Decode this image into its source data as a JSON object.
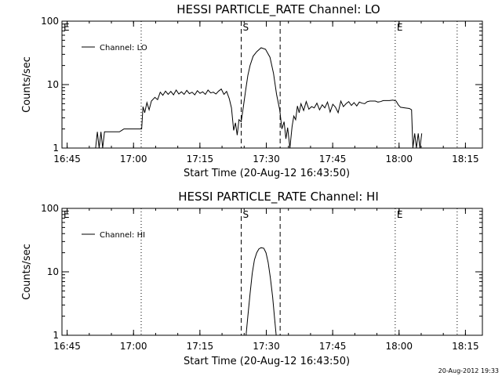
{
  "footer": {
    "timestamp": "20-Aug-2012 19:33"
  },
  "chart_data": [
    {
      "type": "line",
      "title": "HESSI PARTICLE_RATE Channel: LO",
      "xlabel": "Start Time (20-Aug-12 16:43:50)",
      "ylabel": "Counts/sec",
      "x_unit": "minutes after 16:43:50",
      "xlim": [
        0,
        95
      ],
      "ylim": [
        1,
        100
      ],
      "yscale": "log",
      "x_ticks": [
        "16:45",
        "17:00",
        "17:15",
        "17:30",
        "17:45",
        "18:00",
        "18:15"
      ],
      "y_ticks": [
        "1",
        "10",
        "100"
      ],
      "legend": {
        "entries": [
          "Channel: LO"
        ],
        "position": "top-left"
      },
      "markers": [
        {
          "label": "E",
          "x": 0,
          "style": "dotted"
        },
        {
          "label": "",
          "x": 17.9,
          "style": "dotted"
        },
        {
          "label": "S",
          "x": 40.5,
          "style": "dashed"
        },
        {
          "label": "",
          "x": 49.3,
          "style": "dashed"
        },
        {
          "label": "E",
          "x": 75.3,
          "style": "dotted"
        },
        {
          "label": "",
          "x": 89.3,
          "style": "dotted"
        }
      ],
      "series": [
        {
          "values": [
            [
              7.6,
              0.9
            ],
            [
              8.0,
              1.8
            ],
            [
              8.4,
              1.0
            ],
            [
              8.8,
              1.8
            ],
            [
              9.2,
              0.9
            ],
            [
              9.6,
              1.8
            ],
            [
              10.0,
              1.8
            ],
            [
              13.0,
              1.8
            ],
            [
              13.5,
              1.9
            ],
            [
              14.0,
              2.0
            ],
            [
              18.0,
              2.0
            ],
            [
              18.3,
              4.5
            ],
            [
              18.7,
              3.6
            ],
            [
              19.2,
              5.2
            ],
            [
              19.7,
              4.0
            ],
            [
              20.2,
              5.5
            ],
            [
              21.0,
              6.3
            ],
            [
              21.6,
              5.8
            ],
            [
              22.2,
              7.6
            ],
            [
              22.8,
              6.8
            ],
            [
              23.4,
              7.9
            ],
            [
              24.0,
              7.0
            ],
            [
              24.6,
              7.8
            ],
            [
              25.2,
              6.9
            ],
            [
              25.8,
              8.2
            ],
            [
              26.4,
              7.1
            ],
            [
              27.0,
              7.7
            ],
            [
              27.6,
              7.0
            ],
            [
              28.2,
              8.1
            ],
            [
              28.8,
              7.2
            ],
            [
              29.4,
              7.6
            ],
            [
              30.0,
              6.9
            ],
            [
              30.6,
              8.0
            ],
            [
              31.2,
              7.3
            ],
            [
              31.8,
              7.7
            ],
            [
              32.4,
              7.0
            ],
            [
              33.0,
              8.2
            ],
            [
              33.6,
              7.4
            ],
            [
              34.2,
              7.6
            ],
            [
              34.8,
              7.1
            ],
            [
              35.4,
              7.9
            ],
            [
              36.0,
              8.5
            ],
            [
              36.6,
              7.0
            ],
            [
              37.2,
              7.8
            ],
            [
              37.8,
              6.0
            ],
            [
              38.3,
              4.3
            ],
            [
              38.8,
              1.9
            ],
            [
              39.2,
              2.5
            ],
            [
              39.6,
              1.6
            ],
            [
              40.0,
              2.8
            ],
            [
              40.5,
              2.6
            ],
            [
              41.0,
              4.5
            ],
            [
              41.5,
              8.0
            ],
            [
              42.0,
              14.0
            ],
            [
              42.5,
              20.0
            ],
            [
              43.2,
              28.0
            ],
            [
              44.0,
              33.0
            ],
            [
              45.0,
              38.0
            ],
            [
              46.0,
              36.0
            ],
            [
              47.0,
              27.0
            ],
            [
              47.8,
              15.0
            ],
            [
              48.5,
              7.0
            ],
            [
              49.2,
              4.0
            ],
            [
              49.7,
              2.0
            ],
            [
              50.2,
              2.6
            ],
            [
              50.6,
              1.4
            ],
            [
              51.0,
              2.1
            ],
            [
              51.5,
              1.0
            ],
            [
              52.0,
              2.2
            ],
            [
              52.4,
              3.2
            ],
            [
              52.8,
              2.8
            ],
            [
              53.2,
              4.6
            ],
            [
              53.6,
              3.6
            ],
            [
              54.0,
              5.0
            ],
            [
              54.6,
              3.9
            ],
            [
              55.2,
              5.4
            ],
            [
              55.8,
              4.1
            ],
            [
              56.4,
              4.5
            ],
            [
              57.0,
              4.3
            ],
            [
              57.6,
              5.1
            ],
            [
              58.2,
              4.0
            ],
            [
              58.8,
              4.8
            ],
            [
              59.4,
              4.3
            ],
            [
              60.0,
              5.3
            ],
            [
              60.6,
              3.7
            ],
            [
              61.2,
              4.9
            ],
            [
              61.8,
              4.4
            ],
            [
              62.4,
              3.6
            ],
            [
              63.0,
              5.5
            ],
            [
              63.6,
              4.5
            ],
            [
              64.2,
              5.0
            ],
            [
              64.8,
              5.4
            ],
            [
              65.4,
              4.7
            ],
            [
              66.0,
              5.2
            ],
            [
              66.6,
              4.6
            ],
            [
              67.2,
              5.3
            ],
            [
              67.8,
              5.1
            ],
            [
              68.4,
              5.0
            ],
            [
              69.0,
              5.4
            ],
            [
              69.6,
              5.5
            ],
            [
              70.2,
              5.5
            ],
            [
              70.8,
              5.5
            ],
            [
              71.4,
              5.3
            ],
            [
              72.0,
              5.4
            ],
            [
              72.6,
              5.6
            ],
            [
              73.2,
              5.6
            ],
            [
              74.0,
              5.6
            ],
            [
              74.8,
              5.7
            ],
            [
              75.5,
              5.5
            ],
            [
              76.0,
              4.8
            ],
            [
              76.5,
              4.4
            ],
            [
              77.5,
              4.3
            ],
            [
              78.5,
              4.2
            ],
            [
              79.0,
              4.0
            ],
            [
              79.3,
              1.0
            ],
            [
              79.7,
              1.7
            ],
            [
              80.1,
              0.9
            ],
            [
              80.5,
              1.7
            ],
            [
              80.9,
              0.9
            ],
            [
              81.3,
              1.7
            ]
          ]
        }
      ]
    },
    {
      "type": "line",
      "title": "HESSI PARTICLE_RATE Channel: HI",
      "xlabel": "Start Time (20-Aug-12 16:43:50)",
      "ylabel": "Counts/sec",
      "x_unit": "minutes after 16:43:50",
      "xlim": [
        0,
        95
      ],
      "ylim": [
        1,
        100
      ],
      "yscale": "log",
      "x_ticks": [
        "16:45",
        "17:00",
        "17:15",
        "17:30",
        "17:45",
        "18:00",
        "18:15"
      ],
      "y_ticks": [
        "1",
        "10",
        "100"
      ],
      "legend": {
        "entries": [
          "Channel: HI"
        ],
        "position": "top-left"
      },
      "markers": [
        {
          "label": "E",
          "x": 0,
          "style": "dotted"
        },
        {
          "label": "",
          "x": 17.9,
          "style": "dotted"
        },
        {
          "label": "S",
          "x": 40.5,
          "style": "dashed"
        },
        {
          "label": "",
          "x": 49.3,
          "style": "dashed"
        },
        {
          "label": "E",
          "x": 75.3,
          "style": "dotted"
        },
        {
          "label": "",
          "x": 89.3,
          "style": "dotted"
        }
      ],
      "series": [
        {
          "values": [
            [
              41.6,
              0.95
            ],
            [
              42.0,
              2.0
            ],
            [
              42.5,
              4.5
            ],
            [
              43.0,
              9.5
            ],
            [
              43.5,
              15.5
            ],
            [
              44.0,
              20.0
            ],
            [
              44.5,
              23.0
            ],
            [
              45.0,
              24.0
            ],
            [
              45.6,
              23.5
            ],
            [
              46.1,
              20.0
            ],
            [
              46.6,
              14.0
            ],
            [
              47.1,
              8.0
            ],
            [
              47.6,
              4.0
            ],
            [
              48.0,
              2.0
            ],
            [
              48.4,
              0.95
            ]
          ]
        }
      ]
    }
  ]
}
